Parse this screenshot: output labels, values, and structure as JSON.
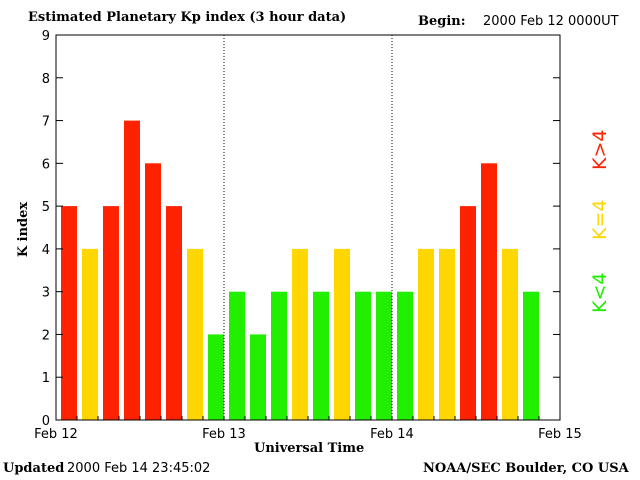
{
  "header": {
    "title": "Estimated Planetary Kp index (3 hour data)",
    "begin_label": "Begin:",
    "begin_value": "2000 Feb 12 0000UT"
  },
  "footer": {
    "updated_label": "Updated",
    "updated_value": "2000 Feb 14 23:45:02",
    "source": "NOAA/SEC Boulder, CO USA"
  },
  "legend": {
    "high": "K>4",
    "mid": "K=4",
    "low": "K<4"
  },
  "colors": {
    "high": "#ff2200",
    "mid": "#ffd700",
    "low": "#22ee00"
  },
  "chart_data": {
    "type": "bar",
    "title": "Estimated Planetary Kp index (3 hour data)",
    "xlabel": "Universal Time",
    "ylabel": "K index",
    "ylim": [
      0,
      9
    ],
    "yticks": [
      "0",
      "1",
      "2",
      "3",
      "4",
      "5",
      "6",
      "7",
      "8",
      "9"
    ],
    "xticks": [
      "Feb 12",
      "Feb 13",
      "Feb 14",
      "Feb 15"
    ],
    "day_separators": [
      "Feb 13",
      "Feb 14"
    ],
    "values": [
      5,
      4,
      5,
      7,
      6,
      5,
      4,
      2,
      3,
      2,
      3,
      4,
      3,
      4,
      3,
      3,
      3,
      4,
      4,
      5,
      6,
      4,
      3
    ]
  }
}
